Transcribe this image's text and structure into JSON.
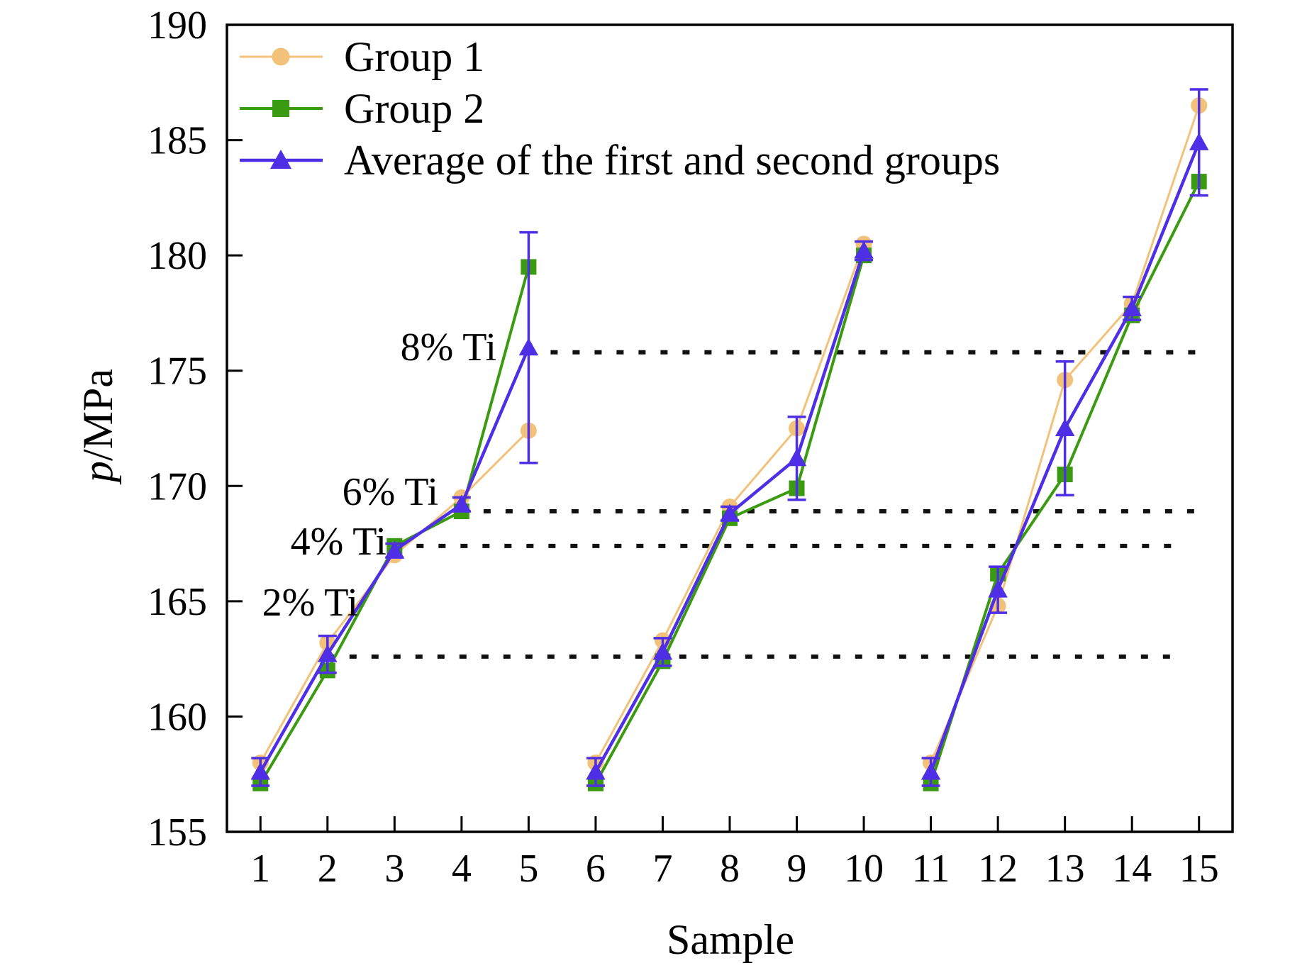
{
  "chart_data": {
    "type": "line",
    "xlabel": "Sample",
    "ylabel": "p/MPa",
    "ylabel_italic": "p",
    "ylabel_rest": "/MPa",
    "ylim": [
      155,
      190
    ],
    "xlim": [
      0.5,
      15.5
    ],
    "xticks": [
      1,
      2,
      3,
      4,
      5,
      6,
      7,
      8,
      9,
      10,
      11,
      12,
      13,
      14,
      15
    ],
    "xtick_labels": [
      "1",
      "2",
      "3",
      "4",
      "5",
      "6",
      "7",
      "8",
      "9",
      "10",
      "11",
      "12",
      "13",
      "14",
      "15"
    ],
    "yticks": [
      155,
      160,
      165,
      170,
      175,
      180,
      185,
      190
    ],
    "ytick_labels": [
      "155",
      "160",
      "165",
      "170",
      "175",
      "180",
      "185",
      "190"
    ],
    "grid": false,
    "legend_position": "top-left",
    "series": [
      {
        "name": "Group 1",
        "color": "#F2C27A",
        "marker": "circle",
        "segments": [
          {
            "x": [
              1,
              2,
              3,
              4,
              5
            ],
            "y": [
              158.0,
              163.2,
              167.0,
              169.5,
              172.4
            ]
          },
          {
            "x": [
              6,
              7,
              8,
              9,
              10
            ],
            "y": [
              158.0,
              163.3,
              169.1,
              172.5,
              180.5
            ]
          },
          {
            "x": [
              11,
              12,
              13,
              14,
              15
            ],
            "y": [
              158.0,
              164.8,
              174.6,
              177.9,
              186.5
            ]
          }
        ]
      },
      {
        "name": "Group 2",
        "color": "#3A9A10",
        "marker": "square",
        "segments": [
          {
            "x": [
              1,
              2,
              3,
              4,
              5
            ],
            "y": [
              157.1,
              162.0,
              167.4,
              168.9,
              179.5
            ]
          },
          {
            "x": [
              6,
              7,
              8,
              9,
              10
            ],
            "y": [
              157.1,
              162.4,
              168.6,
              169.9,
              180.0
            ]
          },
          {
            "x": [
              11,
              12,
              13,
              14,
              15
            ],
            "y": [
              157.1,
              166.2,
              170.5,
              177.4,
              183.2
            ]
          }
        ]
      },
      {
        "name": "Average of the first and second groups",
        "color": "#4F2FE6",
        "marker": "triangle",
        "segments": [
          {
            "x": [
              1,
              2,
              3,
              4,
              5
            ],
            "y": [
              157.6,
              162.7,
              167.2,
              169.2,
              176.0
            ],
            "err": [
              0.6,
              0.8,
              0.3,
              0.3,
              5.0
            ]
          },
          {
            "x": [
              6,
              7,
              8,
              9,
              10
            ],
            "y": [
              157.6,
              162.8,
              168.8,
              171.2,
              180.2
            ],
            "err": [
              0.6,
              0.6,
              0.3,
              1.8,
              0.4
            ]
          },
          {
            "x": [
              11,
              12,
              13,
              14,
              15
            ],
            "y": [
              157.6,
              165.5,
              172.5,
              177.7,
              184.9
            ],
            "err": [
              0.6,
              1.0,
              2.9,
              0.5,
              2.3
            ]
          }
        ]
      }
    ],
    "reference_lines": [
      {
        "label": "8% Ti",
        "y": 175.8,
        "x_from": 5,
        "x_to": 15
      },
      {
        "label": "6% Ti",
        "y": 168.9,
        "x_from": 4,
        "x_to": 15
      },
      {
        "label": "4% Ti",
        "y": 167.4,
        "x_from": 3,
        "x_to": 14.7
      },
      {
        "label": "2% Ti",
        "y": 162.6,
        "x_from": 2,
        "x_to": 14.7
      }
    ]
  }
}
